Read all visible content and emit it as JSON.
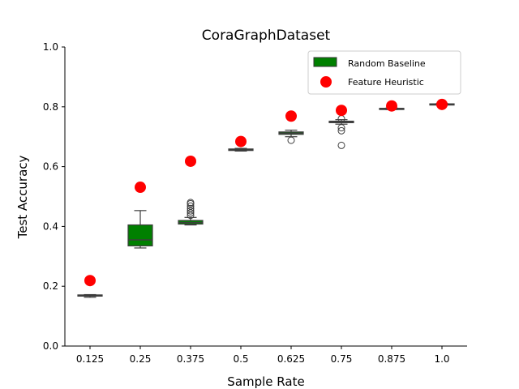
{
  "chart_data": {
    "type": "box",
    "title": "CoraGraphDataset",
    "xlabel": "Sample Rate",
    "ylabel": "Test Accuracy",
    "ylim": [
      0.0,
      1.0
    ],
    "yticks": [
      "0.0",
      "0.2",
      "0.4",
      "0.6",
      "0.8",
      "1.0"
    ],
    "categories": [
      "0.125",
      "0.25",
      "0.375",
      "0.5",
      "0.625",
      "0.75",
      "0.875",
      "1.0"
    ],
    "legend_position": "top-right",
    "grid": false,
    "series": [
      {
        "name": "Random Baseline",
        "kind": "box",
        "color": "#008000",
        "boxes": [
          {
            "q1": 0.167,
            "median": 0.169,
            "q3": 0.171,
            "whislo": 0.163,
            "whishi": 0.172,
            "fliers": []
          },
          {
            "q1": 0.335,
            "median": 0.355,
            "q3": 0.405,
            "whislo": 0.328,
            "whishi": 0.453,
            "fliers": []
          },
          {
            "q1": 0.408,
            "median": 0.413,
            "q3": 0.42,
            "whislo": 0.405,
            "whishi": 0.43,
            "fliers": [
              0.437,
              0.445,
              0.452,
              0.46,
              0.468,
              0.476,
              0.48
            ]
          },
          {
            "q1": 0.654,
            "median": 0.656,
            "q3": 0.659,
            "whislo": 0.652,
            "whishi": 0.661,
            "fliers": []
          },
          {
            "q1": 0.708,
            "median": 0.712,
            "q3": 0.716,
            "whislo": 0.7,
            "whishi": 0.722,
            "fliers": [
              0.688
            ]
          },
          {
            "q1": 0.747,
            "median": 0.75,
            "q3": 0.752,
            "whislo": 0.742,
            "whishi": 0.757,
            "fliers": [
              0.76,
              0.73,
              0.72,
              0.671
            ]
          },
          {
            "q1": 0.792,
            "median": 0.793,
            "q3": 0.795,
            "whislo": 0.791,
            "whishi": 0.796,
            "fliers": []
          },
          {
            "q1": 0.807,
            "median": 0.808,
            "q3": 0.81,
            "whislo": 0.806,
            "whishi": 0.811,
            "fliers": []
          }
        ]
      },
      {
        "name": "Feature Heuristic",
        "kind": "scatter",
        "color": "#ff0000",
        "values": [
          0.219,
          0.531,
          0.618,
          0.684,
          0.769,
          0.788,
          0.803,
          0.808
        ]
      }
    ]
  }
}
